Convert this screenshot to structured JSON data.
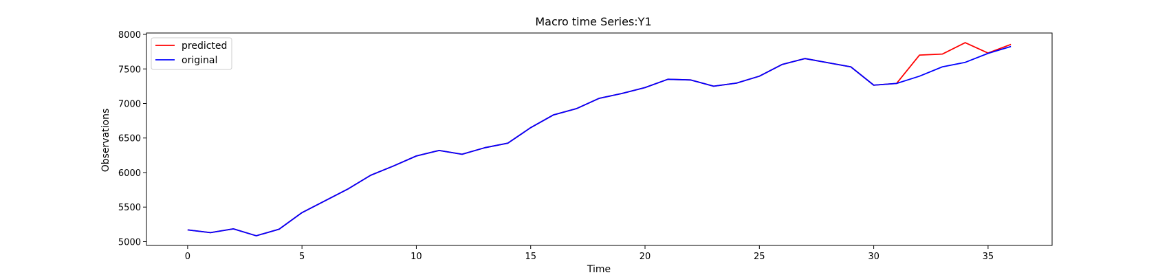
{
  "chart_data": {
    "type": "line",
    "title": "Macro time Series:Y1",
    "xlabel": "Time",
    "ylabel": "Observations",
    "xlim": [
      -1.8,
      37.8
    ],
    "ylim": [
      4945,
      8020
    ],
    "xticks": [
      0,
      5,
      10,
      15,
      20,
      25,
      30,
      35
    ],
    "yticks": [
      5000,
      5500,
      6000,
      6500,
      7000,
      7500,
      8000
    ],
    "grid": false,
    "legend_position": "top-left",
    "x": [
      0,
      1,
      2,
      3,
      4,
      5,
      6,
      7,
      8,
      9,
      10,
      11,
      12,
      13,
      14,
      15,
      16,
      17,
      18,
      19,
      20,
      21,
      22,
      23,
      24,
      25,
      26,
      27,
      28,
      29,
      30,
      31,
      32,
      33,
      34,
      35,
      36
    ],
    "series": [
      {
        "name": "predicted",
        "color": "#ff0000",
        "values": [
          5170,
          5130,
          5185,
          5085,
          5180,
          5420,
          5590,
          5760,
          5960,
          6095,
          6240,
          6320,
          6265,
          6360,
          6425,
          6650,
          6835,
          6925,
          7075,
          7145,
          7230,
          7350,
          7340,
          7250,
          7295,
          7395,
          7565,
          7650,
          7590,
          7530,
          7265,
          7290,
          7700,
          7715,
          7880,
          7730,
          7855
        ]
      },
      {
        "name": "original",
        "color": "#0000ff",
        "values": [
          5170,
          5130,
          5185,
          5085,
          5180,
          5420,
          5590,
          5760,
          5960,
          6095,
          6240,
          6320,
          6265,
          6360,
          6425,
          6650,
          6835,
          6925,
          7075,
          7145,
          7230,
          7350,
          7340,
          7250,
          7295,
          7395,
          7565,
          7650,
          7590,
          7530,
          7265,
          7290,
          7395,
          7530,
          7595,
          7725,
          7825
        ]
      }
    ]
  }
}
